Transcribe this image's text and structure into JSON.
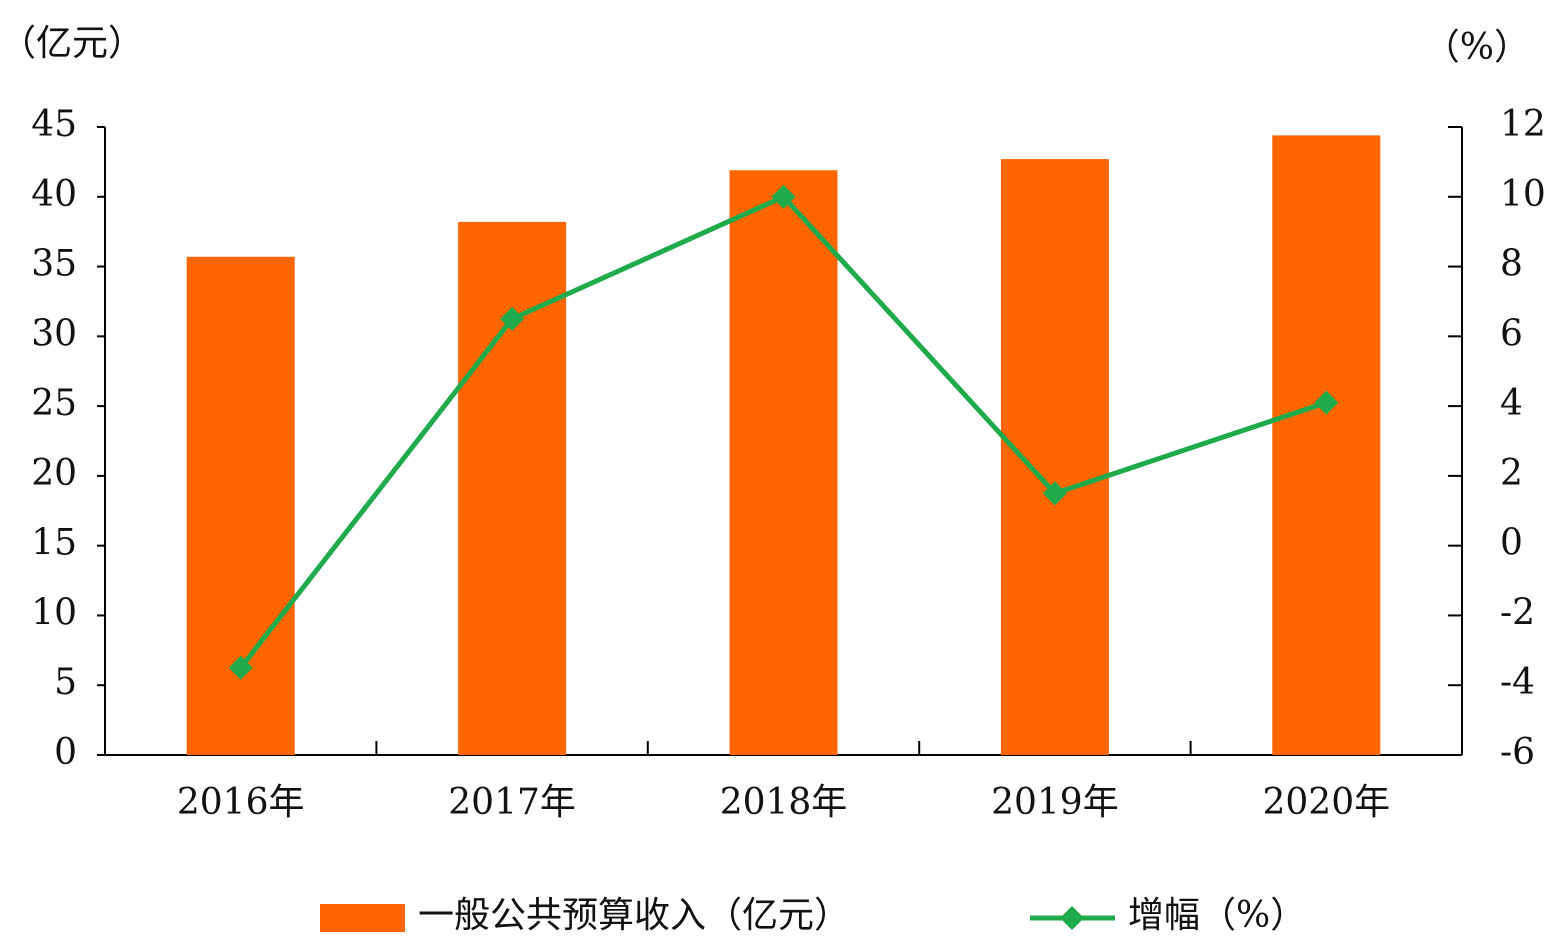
{
  "chart_data": {
    "type": "bar",
    "y_label": "（亿元）",
    "y2_label": "（%）",
    "categories": [
      "2016年",
      "2017年",
      "2018年",
      "2019年",
      "2020年"
    ],
    "series": [
      {
        "name": "一般公共预算收入（亿元）",
        "type": "bar",
        "color": "#ff6600",
        "values": [
          35.7,
          38.2,
          41.9,
          42.7,
          44.4
        ]
      },
      {
        "name": "增幅（%）",
        "type": "line",
        "axis": "y2",
        "color": "#1faa4c",
        "values": [
          -3.5,
          6.5,
          10.0,
          1.5,
          4.1
        ]
      }
    ],
    "ylim": [
      0,
      45
    ],
    "yticks": [
      0,
      5,
      10,
      15,
      20,
      25,
      30,
      35,
      40,
      45
    ],
    "y2lim": [
      -6,
      12
    ],
    "y2ticks": [
      -6,
      -4,
      -2,
      0,
      2,
      4,
      6,
      8,
      10,
      12
    ],
    "grid": false,
    "legend": "bottom"
  }
}
